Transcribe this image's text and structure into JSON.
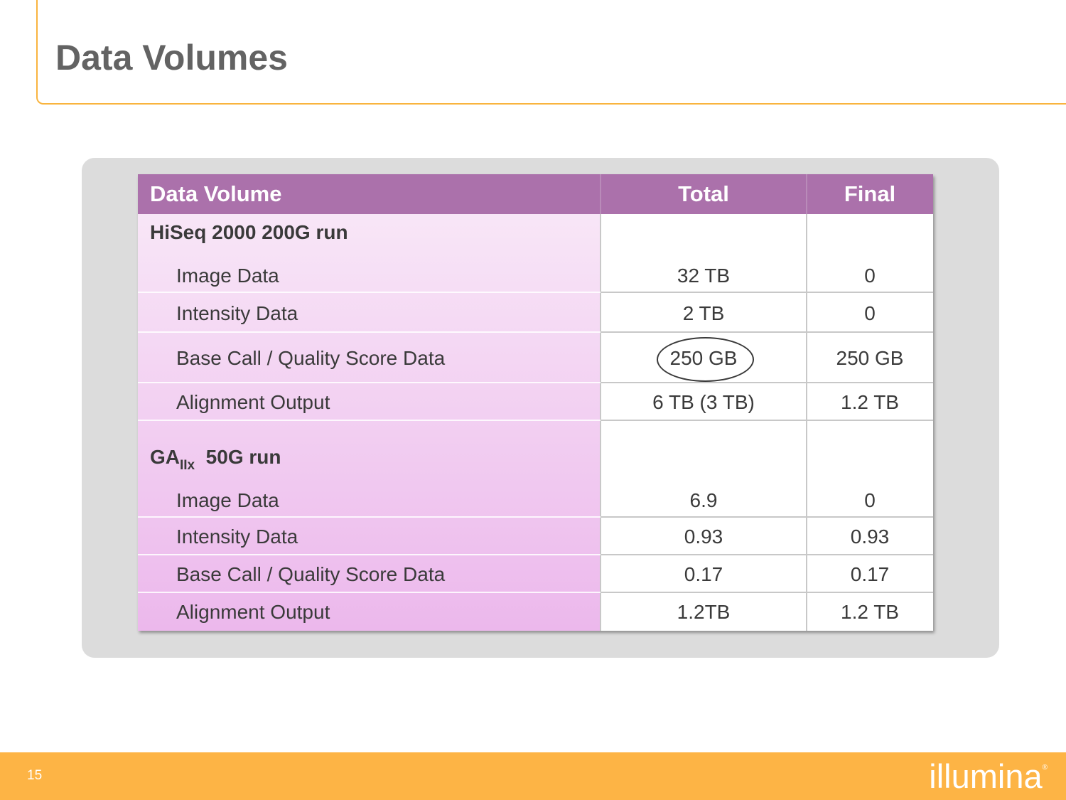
{
  "slide": {
    "title": "Data Volumes",
    "page_number": "15",
    "logo_text": "illumina",
    "logo_mark": "®"
  },
  "table": {
    "headers": {
      "label": "Data Volume",
      "total": "Total",
      "final": "Final"
    },
    "group1": {
      "title": "HiSeq 2000 200G run",
      "rows": [
        {
          "label": "Image Data",
          "total": "32 TB",
          "final": "0"
        },
        {
          "label": "Intensity Data",
          "total": "2 TB",
          "final": "0"
        },
        {
          "label": "Base Call / Quality Score Data",
          "total": "250 GB",
          "final": "250 GB"
        },
        {
          "label": "Alignment Output",
          "total": "6 TB (3 TB)",
          "final": "1.2 TB"
        }
      ]
    },
    "group2": {
      "title_main": "GA",
      "title_sub": "IIx",
      "title_rest": "  50G run",
      "rows": [
        {
          "label": "Image Data",
          "total": "6.9",
          "final": "0"
        },
        {
          "label": "Intensity Data",
          "total": "0.93",
          "final": "0.93"
        },
        {
          "label": "Base Call / Quality Score Data",
          "total": "0.17",
          "final": "0.17"
        },
        {
          "label": "Alignment Output",
          "total": "1.2TB",
          "final": "1.2 TB"
        }
      ]
    }
  },
  "colors": {
    "accent_orange": "#fdb445",
    "header_purple": "#ab71ab",
    "panel_gray": "#dcdcdc"
  }
}
